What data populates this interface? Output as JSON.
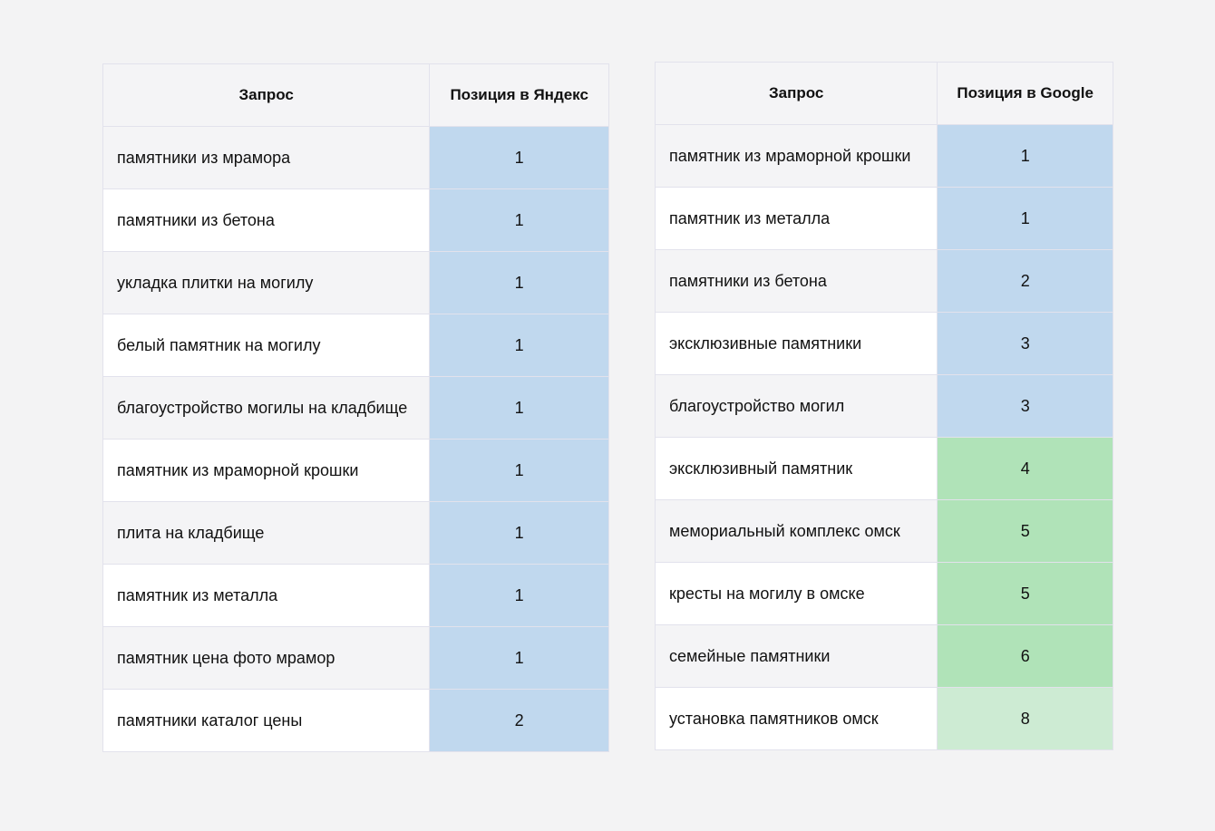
{
  "tables": [
    {
      "headers": [
        "Запрос",
        "Позиция в Яндекс"
      ],
      "rows": [
        [
          "памятники из мрамора",
          1
        ],
        [
          "памятники из бетона",
          1
        ],
        [
          "укладка плитки на могилу",
          1
        ],
        [
          "белый памятник на могилу",
          1
        ],
        [
          "благоустройство могилы на кладбище",
          1
        ],
        [
          "памятник из мраморной крошки",
          1
        ],
        [
          "плита на кладбище",
          1
        ],
        [
          "памятник из металла",
          1
        ],
        [
          "памятник цена фото мрамор",
          1
        ],
        [
          "памятники каталог цены",
          2
        ]
      ],
      "cell_colors": [
        "#c0d8ee",
        "#c0d8ee",
        "#c0d8ee",
        "#c0d8ee",
        "#c0d8ee",
        "#c0d8ee",
        "#c0d8ee",
        "#c0d8ee",
        "#c0d8ee",
        "#c0d8ee"
      ]
    },
    {
      "headers": [
        "Запрос",
        "Позиция в Google"
      ],
      "rows": [
        [
          "памятник из мраморной крошки",
          1
        ],
        [
          "памятник из металла",
          1
        ],
        [
          "памятники из бетона",
          2
        ],
        [
          "эксклюзивные памятники",
          3
        ],
        [
          "благоустройство могил",
          3
        ],
        [
          "эксклюзивный памятник",
          4
        ],
        [
          "мемориальный комплекс омск",
          5
        ],
        [
          "кресты на могилу в омске",
          5
        ],
        [
          "семейные памятники",
          6
        ],
        [
          "установка памятников омск",
          8
        ]
      ],
      "cell_colors": [
        "#c0d8ee",
        "#c0d8ee",
        "#c0d8ee",
        "#c0d8ee",
        "#c0d8ee",
        "#b0e3b8",
        "#b0e3b8",
        "#b0e3b8",
        "#b0e3b8",
        "#cdebd3"
      ]
    }
  ]
}
